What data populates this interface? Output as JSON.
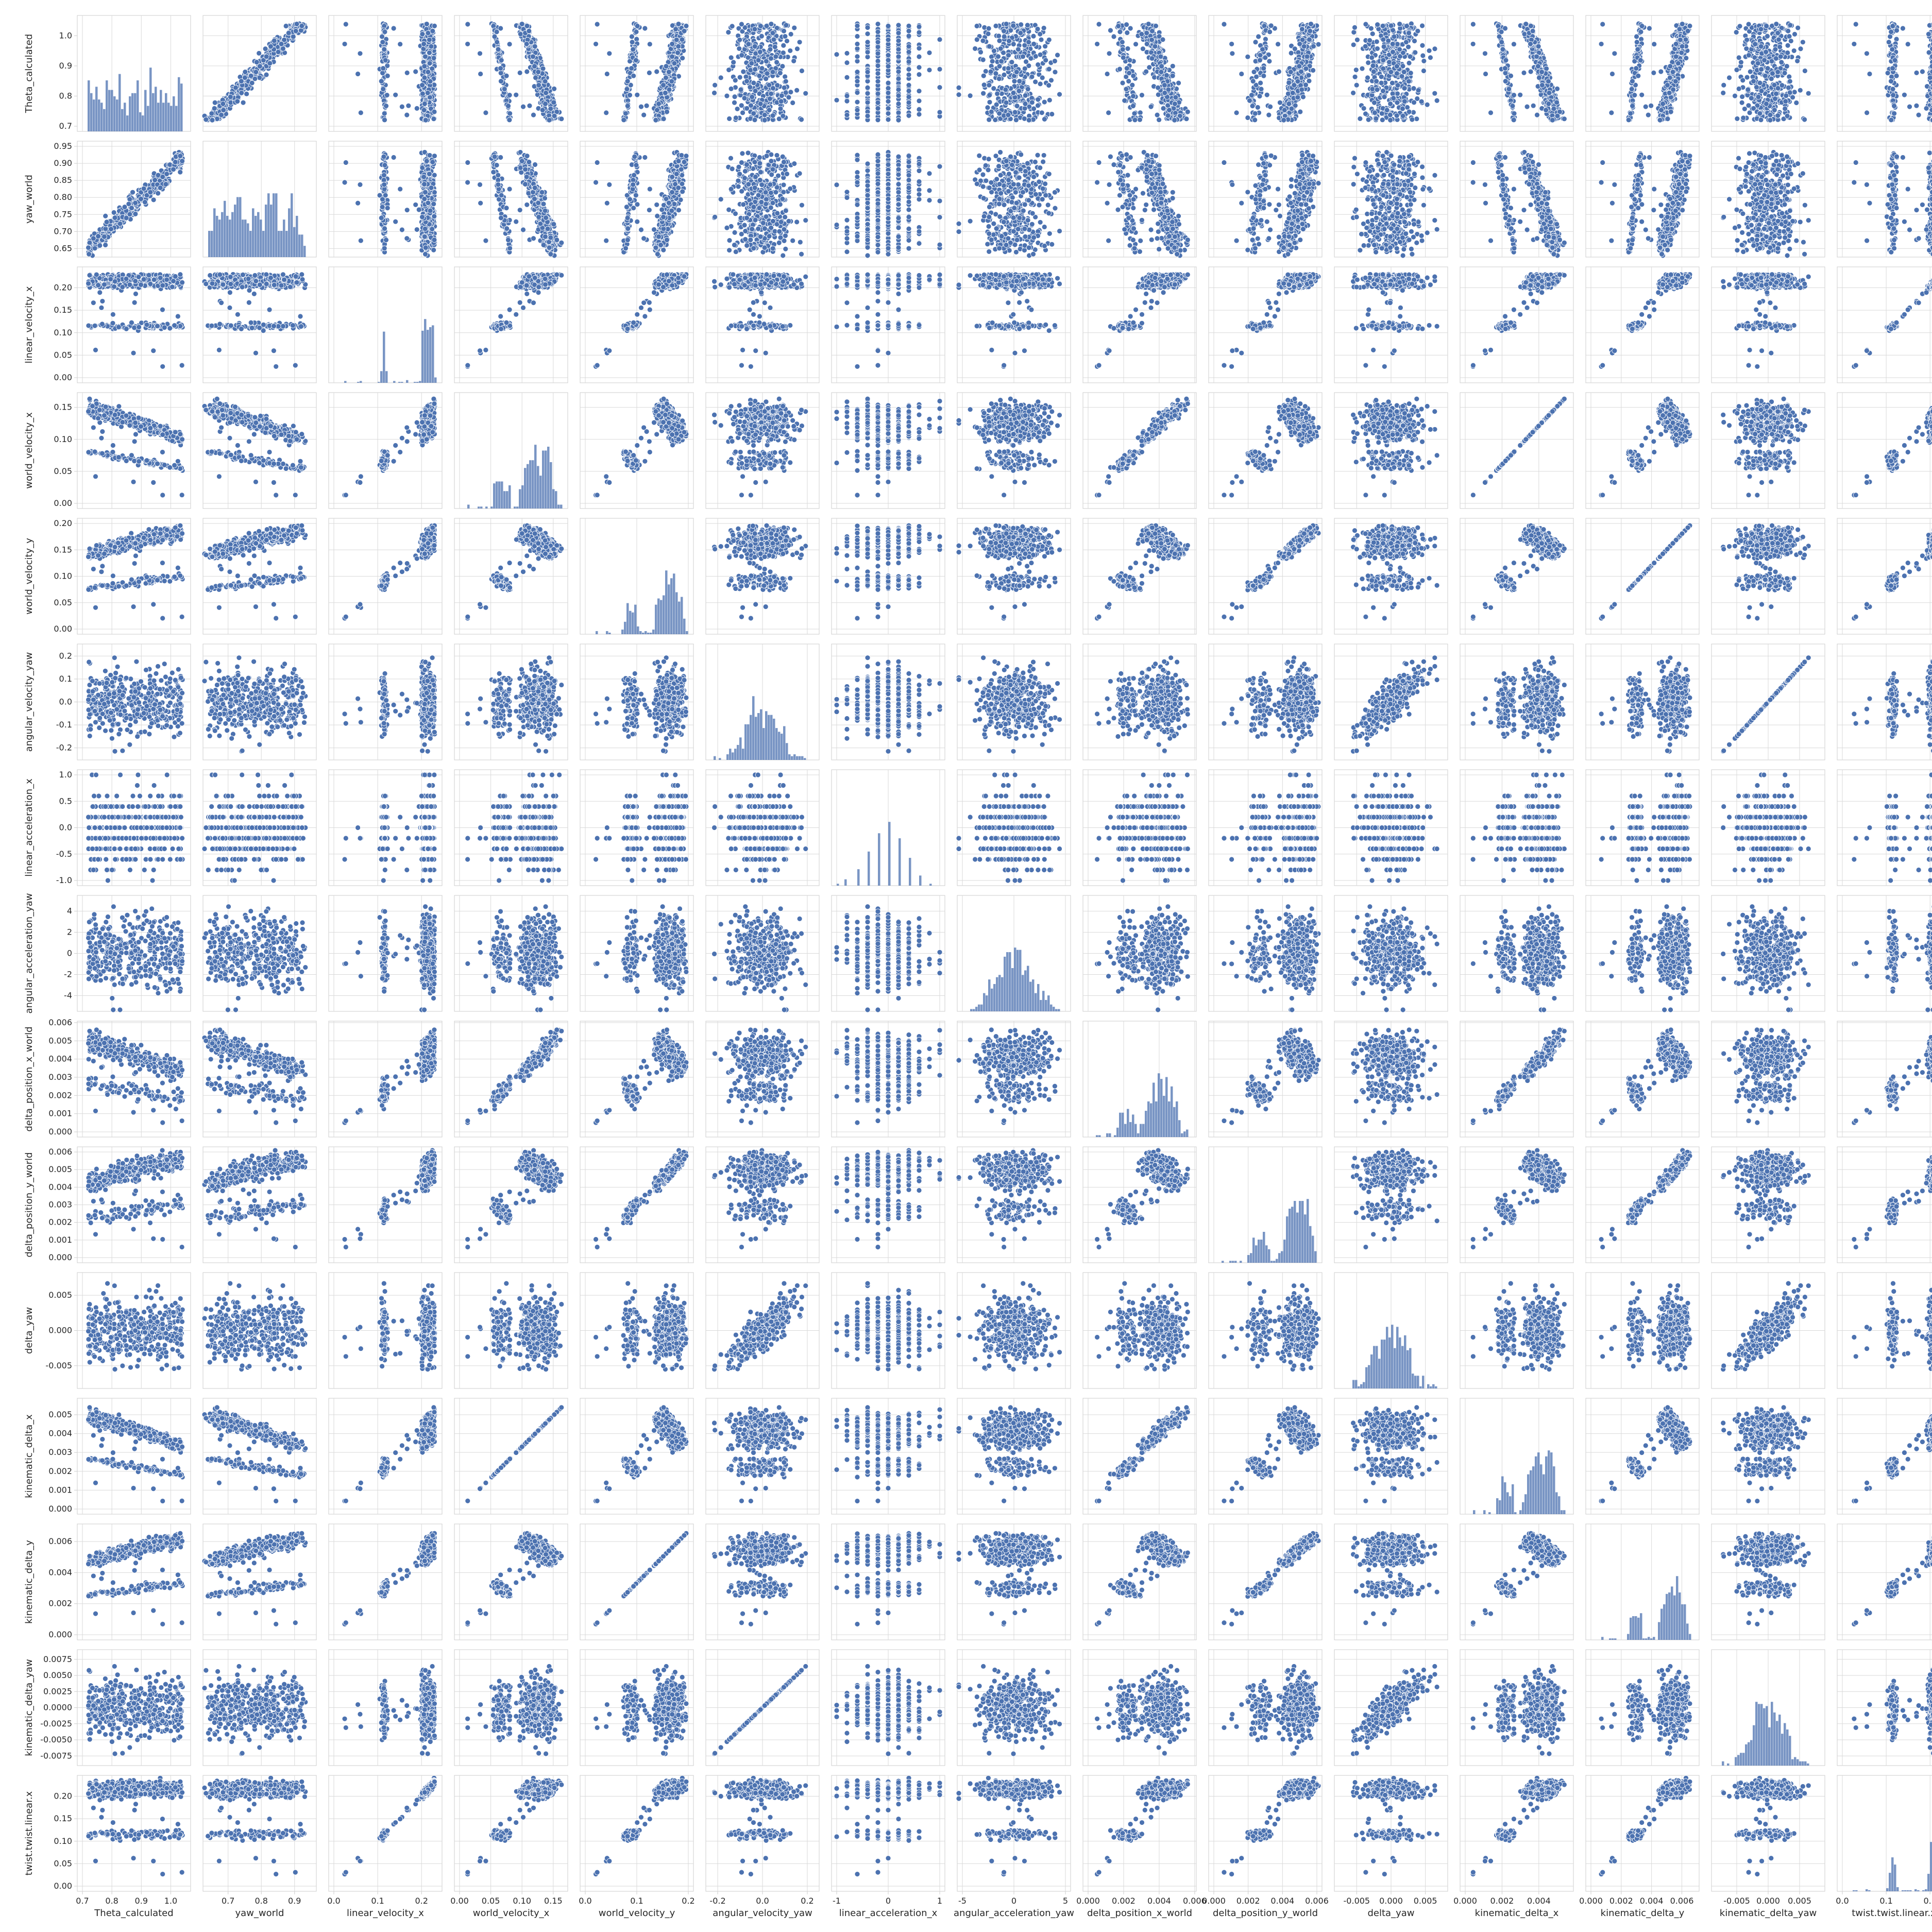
{
  "chart_data": {
    "type": "scatter",
    "subtype": "pairplot",
    "grid": true,
    "colors": {
      "marker": "#4c72b0",
      "marker_edge": "#ffffff",
      "grid": "#d9d9d9",
      "axes": "#cccccc",
      "text": "#262626"
    },
    "variables": [
      {
        "name": "Theta_calculated",
        "min": 0.7,
        "max": 1.05,
        "yticks": [
          "0.7",
          "0.8",
          "0.9",
          "1.0"
        ],
        "ytick_values": [
          0.7,
          0.8,
          0.9,
          1.0
        ],
        "xticks": [
          "0.7",
          "0.8",
          "0.9",
          "1.0"
        ],
        "xtick_values": [
          0.7,
          0.8,
          0.9,
          1.0
        ]
      },
      {
        "name": "yaw_world",
        "min": 0.64,
        "max": 0.95,
        "yticks": [
          "0.65",
          "0.70",
          "0.75",
          "0.80",
          "0.85",
          "0.90",
          "0.95"
        ],
        "ytick_values": [
          0.65,
          0.7,
          0.75,
          0.8,
          0.85,
          0.9,
          0.95
        ],
        "xticks": [
          "0.7",
          "0.8",
          "0.9"
        ],
        "xtick_values": [
          0.7,
          0.8,
          0.9
        ]
      },
      {
        "name": "linear_velocity_x",
        "min": 0.0,
        "max": 0.235,
        "yticks": [
          "0.00",
          "0.05",
          "0.10",
          "0.15",
          "0.20"
        ],
        "ytick_values": [
          0,
          0.05,
          0.1,
          0.15,
          0.2
        ],
        "xticks": [
          "0.0",
          "0.1",
          "0.2"
        ],
        "xtick_values": [
          0,
          0.1,
          0.2
        ]
      },
      {
        "name": "world_velocity_x",
        "min": 0.0,
        "max": 0.165,
        "yticks": [
          "0.00",
          "0.05",
          "0.10",
          "0.15"
        ],
        "ytick_values": [
          0,
          0.05,
          0.1,
          0.15
        ],
        "xticks": [
          "0.00",
          "0.05",
          "0.10",
          "0.15"
        ],
        "xtick_values": [
          0,
          0.05,
          0.1,
          0.15
        ]
      },
      {
        "name": "world_velocity_y",
        "min": 0.0,
        "max": 0.2,
        "yticks": [
          "0.00",
          "0.05",
          "0.10",
          "0.15",
          "0.20"
        ],
        "ytick_values": [
          0,
          0.05,
          0.1,
          0.15,
          0.2
        ],
        "xticks": [
          "0.0",
          "0.1",
          "0.2"
        ],
        "xtick_values": [
          0,
          0.1,
          0.2
        ]
      },
      {
        "name": "angular_velocity_yaw",
        "min": -0.23,
        "max": 0.23,
        "yticks": [
          "-0.2",
          "-0.1",
          "0.0",
          "0.1",
          "0.2"
        ],
        "ytick_values": [
          -0.2,
          -0.1,
          0,
          0.1,
          0.2
        ],
        "xticks": [
          "-0.2",
          "0.0",
          "0.2"
        ],
        "xtick_values": [
          -0.2,
          0,
          0.2
        ]
      },
      {
        "name": "linear_acceleration_x",
        "min": -1.0,
        "max": 1.0,
        "yticks": [
          "-1.0",
          "-0.5",
          "0.0",
          "0.5",
          "1.0"
        ],
        "ytick_values": [
          -1,
          -0.5,
          0,
          0.5,
          1
        ],
        "xticks": [
          "-1",
          "0",
          "1"
        ],
        "xtick_values": [
          -1,
          0,
          1
        ]
      },
      {
        "name": "angular_acceleration_yaw",
        "min": -5.0,
        "max": 5.0,
        "yticks": [
          "-4",
          "-2",
          "0",
          "2",
          "4"
        ],
        "ytick_values": [
          -4,
          -2,
          0,
          2,
          4
        ],
        "xticks": [
          "-5",
          "0",
          "5"
        ],
        "xtick_values": [
          -5,
          0,
          5
        ]
      },
      {
        "name": "delta_position_x_world",
        "min": 0.0,
        "max": 0.0058,
        "yticks": [
          "0.000",
          "0.001",
          "0.002",
          "0.003",
          "0.004",
          "0.005",
          "0.006"
        ],
        "ytick_values": [
          0,
          0.001,
          0.002,
          0.003,
          0.004,
          0.005,
          0.006
        ],
        "xticks": [
          "0.000",
          "0.002",
          "0.004",
          "0.006"
        ],
        "xtick_values": [
          0,
          0.002,
          0.004,
          0.006
        ]
      },
      {
        "name": "delta_position_y_world",
        "min": 0.0,
        "max": 0.006,
        "yticks": [
          "0.000",
          "0.001",
          "0.002",
          "0.003",
          "0.004",
          "0.005",
          "0.006"
        ],
        "ytick_values": [
          0,
          0.001,
          0.002,
          0.003,
          0.004,
          0.005,
          0.006
        ],
        "xticks": [
          "0.000",
          "0.002",
          "0.004",
          "0.006"
        ],
        "xtick_values": [
          0,
          0.002,
          0.004,
          0.006
        ]
      },
      {
        "name": "delta_yaw",
        "min": -0.0075,
        "max": 0.0075,
        "yticks": [
          "-0.005",
          "0.000",
          "0.005"
        ],
        "ytick_values": [
          -0.005,
          0,
          0.005
        ],
        "xticks": [
          "-0.005",
          "0.000",
          "0.005"
        ],
        "xtick_values": [
          -0.005,
          0,
          0.005
        ]
      },
      {
        "name": "kinematic_delta_x",
        "min": 0.0,
        "max": 0.0056,
        "yticks": [
          "0.000",
          "0.001",
          "0.002",
          "0.003",
          "0.004",
          "0.005"
        ],
        "ytick_values": [
          0,
          0.001,
          0.002,
          0.003,
          0.004,
          0.005
        ],
        "xticks": [
          "0.000",
          "0.002",
          "0.004"
        ],
        "xtick_values": [
          0,
          0.002,
          0.004
        ]
      },
      {
        "name": "kinematic_delta_y",
        "min": 0.0,
        "max": 0.0068,
        "yticks": [
          "0.000",
          "0.002",
          "0.004",
          "0.006"
        ],
        "ytick_values": [
          0,
          0.002,
          0.004,
          0.006
        ],
        "xticks": [
          "0.000",
          "0.002",
          "0.004",
          "0.006"
        ],
        "xtick_values": [
          0,
          0.002,
          0.004,
          0.006
        ]
      },
      {
        "name": "kinematic_delta_yaw",
        "min": -0.0082,
        "max": 0.0082,
        "yticks": [
          "-0.0075",
          "-0.0050",
          "-0.0025",
          "0.0000",
          "0.0025",
          "0.0050",
          "0.0075"
        ],
        "ytick_values": [
          -0.0075,
          -0.005,
          -0.0025,
          0,
          0.0025,
          0.005,
          0.0075
        ],
        "xticks": [
          "-0.005",
          "0.000",
          "0.005"
        ],
        "xtick_values": [
          -0.005,
          0,
          0.005
        ]
      },
      {
        "name": "twist.twist.linear.x",
        "min": 0.0,
        "max": 0.235,
        "yticks": [
          "0.00",
          "0.05",
          "0.10",
          "0.15",
          "0.20"
        ],
        "ytick_values": [
          0,
          0.05,
          0.1,
          0.15,
          0.2
        ],
        "xticks": [
          "0.0",
          "0.1",
          "0.2"
        ],
        "xtick_values": [
          0,
          0.1,
          0.2
        ]
      }
    ]
  }
}
